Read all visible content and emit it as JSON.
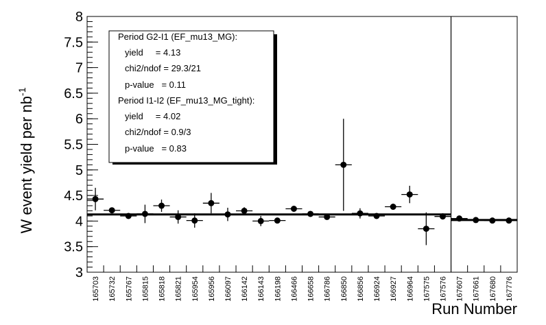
{
  "chart_data": {
    "type": "scatter",
    "title": "",
    "xlabel": "Run Number",
    "ylabel": "W event yield per nb",
    "ylabel_exp": "-1",
    "ylim": [
      3,
      8
    ],
    "yticks": [
      "3",
      "3.5",
      "4",
      "4.5",
      "5",
      "5.5",
      "6",
      "6.5",
      "7",
      "7.5",
      "8"
    ],
    "categories": [
      "165703",
      "165732",
      "165767",
      "165815",
      "165818",
      "165821",
      "165954",
      "165956",
      "166097",
      "166142",
      "166143",
      "166198",
      "166466",
      "166658",
      "166786",
      "166850",
      "166856",
      "166924",
      "166927",
      "166964",
      "167575",
      "167576",
      "167607",
      "167661",
      "167680",
      "167776"
    ],
    "values": [
      4.43,
      4.21,
      4.1,
      4.14,
      4.3,
      4.08,
      4.01,
      4.35,
      4.13,
      4.2,
      4.0,
      4.01,
      4.24,
      4.14,
      4.08,
      5.1,
      4.15,
      4.1,
      4.28,
      4.52,
      3.85,
      4.09,
      4.05,
      4.02,
      4.01,
      4.01
    ],
    "errors": [
      0.22,
      0.05,
      0.05,
      0.18,
      0.12,
      0.13,
      0.14,
      0.2,
      0.13,
      0.07,
      0.1,
      0.04,
      0.05,
      0.05,
      0.05,
      0.9,
      0.1,
      0.04,
      0.06,
      0.17,
      0.32,
      0.06,
      0.04,
      0.03,
      0.03,
      0.03
    ],
    "fits": [
      {
        "name": "Period G2-I1",
        "yield": 4.13,
        "from_index": 0,
        "to_index": 21
      },
      {
        "name": "Period I1-I2",
        "yield": 4.02,
        "from_index": 22,
        "to_index": 25
      }
    ],
    "period_separator_after_index": 21,
    "grid": false
  },
  "legend": {
    "lines": [
      "Period G2-I1 (EF_mu13_MG):",
      "yield     = 4.13",
      "chi2/ndof = 29.3/21",
      "p-value   = 0.11",
      "Period I1-I2 (EF_mu13_MG_tight):",
      "yield     = 4.02",
      "chi2/ndof = 0.9/3",
      "p-value   = 0.83"
    ]
  }
}
